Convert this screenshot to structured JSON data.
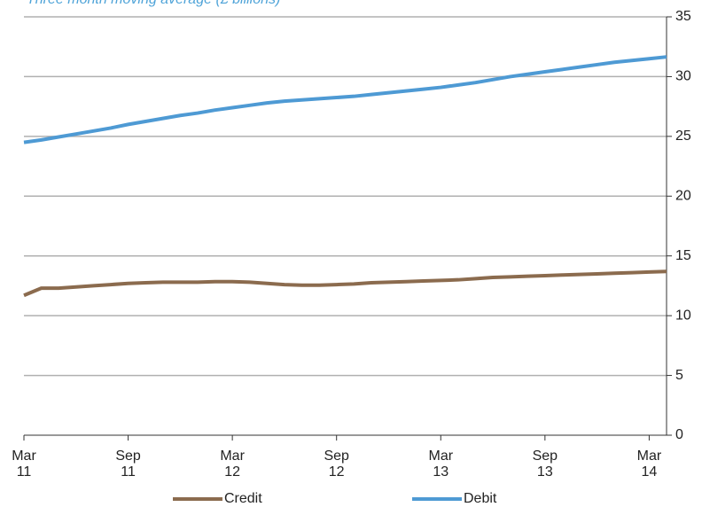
{
  "chart_data": {
    "type": "line",
    "subtitle": "Three month moving average (£ billions)",
    "categories": [
      "Mar\n11",
      null,
      null,
      null,
      null,
      null,
      "Sep\n11",
      null,
      null,
      null,
      null,
      null,
      "Mar\n12",
      null,
      null,
      null,
      null,
      null,
      "Sep\n12",
      null,
      null,
      null,
      null,
      null,
      "Mar\n13",
      null,
      null,
      null,
      null,
      null,
      "Sep\n13",
      null,
      null,
      null,
      null,
      null,
      "Mar\n14",
      null
    ],
    "series": [
      {
        "name": "Credit",
        "color": "#8b6b4e",
        "values": [
          11.7,
          12.3,
          12.3,
          12.4,
          12.5,
          12.6,
          12.7,
          12.75,
          12.8,
          12.8,
          12.8,
          12.85,
          12.85,
          12.8,
          12.7,
          12.6,
          12.55,
          12.55,
          12.6,
          12.65,
          12.75,
          12.8,
          12.85,
          12.9,
          12.95,
          13.0,
          13.1,
          13.2,
          13.25,
          13.3,
          13.35,
          13.4,
          13.45,
          13.5,
          13.55,
          13.6,
          13.65,
          13.7
        ]
      },
      {
        "name": "Debit",
        "color": "#4e9ad4",
        "values": [
          24.5,
          24.7,
          24.95,
          25.2,
          25.45,
          25.7,
          26.0,
          26.25,
          26.5,
          26.75,
          26.95,
          27.2,
          27.4,
          27.6,
          27.8,
          27.95,
          28.05,
          28.15,
          28.25,
          28.35,
          28.5,
          28.65,
          28.8,
          28.95,
          29.1,
          29.3,
          29.5,
          29.75,
          30.0,
          30.2,
          30.4,
          30.6,
          30.8,
          31.0,
          31.2,
          31.35,
          31.5,
          31.65
        ]
      }
    ],
    "ylim": [
      0,
      35
    ],
    "yticks": [
      0,
      5,
      10,
      15,
      20,
      25,
      30,
      35
    ],
    "grid": true,
    "y_axis_side": "right"
  }
}
